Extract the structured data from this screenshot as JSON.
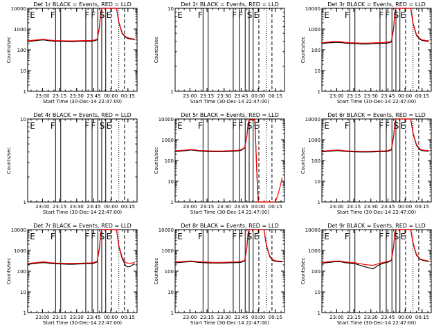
{
  "colors": {
    "events": "#000000",
    "lld": "#ff0000",
    "axis": "#000000",
    "background": "#ffffff"
  },
  "x_axis_label": "Start Time (30-Dec-14 22:47:00)",
  "y_axis_label": "Counts/sec",
  "chart_data": [
    {
      "type": "line",
      "title": "Det 1r BLACK = Events, RED = LLD",
      "x_ticks": [
        "23:00",
        "23:15",
        "23:30",
        "23:45",
        "00:00",
        "00:15"
      ],
      "y_ticks": [
        "1",
        "10",
        "100",
        "1000",
        "10000"
      ],
      "ylim": [
        1,
        10000
      ],
      "yscale": "log",
      "markers": [
        "E",
        "F",
        "F",
        "F",
        "S",
        "E"
      ],
      "x_minutes": [
        0,
        5,
        10,
        14,
        18,
        20,
        25,
        30,
        35,
        40,
        45,
        50,
        55,
        58,
        61,
        63,
        64,
        65,
        66,
        67,
        68,
        70,
        72,
        73,
        74,
        76,
        78,
        80,
        83,
        86,
        88,
        90,
        92,
        94
      ],
      "series": [
        {
          "name": "Events",
          "values": [
            250,
            270,
            290,
            300,
            280,
            270,
            260,
            255,
            250,
            250,
            255,
            260,
            260,
            270,
            300,
            1200,
            6000,
            10000,
            10000,
            10000,
            10000,
            10000,
            10000,
            10000,
            10000,
            10000,
            10000,
            2000,
            600,
            400,
            350,
            330,
            320,
            310
          ]
        },
        {
          "name": "LLD",
          "values": [
            270,
            290,
            310,
            320,
            300,
            290,
            280,
            275,
            270,
            270,
            275,
            280,
            280,
            290,
            320,
            1300,
            6500,
            10000,
            10000,
            10000,
            10000,
            10000,
            10000,
            10000,
            10000,
            10000,
            10000,
            2200,
            650,
            430,
            380,
            360,
            340,
            330
          ]
        }
      ]
    },
    {
      "type": "line",
      "title": "Det 2r BLACK = Events, RED = LLD",
      "x_ticks": [
        "23:00",
        "23:15",
        "23:30",
        "23:45",
        "00:00",
        "00:15"
      ],
      "y_ticks": [
        "1",
        "10"
      ],
      "ylim": [
        1,
        10
      ],
      "yscale": "log",
      "markers": [
        "E",
        "F",
        "F",
        "F",
        "S",
        "E"
      ],
      "x_minutes": [],
      "series": []
    },
    {
      "type": "line",
      "title": "Det 3r BLACK = Events, RED = LLD",
      "x_ticks": [
        "23:00",
        "23:15",
        "23:30",
        "23:45",
        "00:00",
        "00:15"
      ],
      "y_ticks": [
        "1",
        "10",
        "100",
        "1000",
        "10000"
      ],
      "ylim": [
        1,
        10000
      ],
      "yscale": "log",
      "markers": [
        "E",
        "F",
        "F",
        "F",
        "S",
        "E"
      ],
      "x_minutes": [
        0,
        5,
        10,
        14,
        18,
        20,
        25,
        30,
        35,
        40,
        45,
        50,
        55,
        58,
        61,
        63,
        64,
        65,
        66,
        67,
        68,
        70,
        72,
        73,
        74,
        76,
        78,
        80,
        83,
        86,
        88,
        90,
        92,
        94
      ],
      "series": [
        {
          "name": "Events",
          "values": [
            200,
            215,
            225,
            230,
            220,
            210,
            200,
            195,
            190,
            190,
            195,
            200,
            205,
            215,
            240,
            1100,
            5500,
            10000,
            10000,
            10000,
            10000,
            10000,
            10000,
            10000,
            10000,
            10000,
            10000,
            1800,
            500,
            320,
            280,
            270,
            260,
            255
          ]
        },
        {
          "name": "LLD",
          "values": [
            220,
            235,
            245,
            250,
            240,
            230,
            220,
            215,
            210,
            210,
            215,
            220,
            225,
            235,
            260,
            1200,
            6000,
            10000,
            10000,
            10000,
            10000,
            10000,
            10000,
            10000,
            10000,
            10000,
            10000,
            2000,
            550,
            350,
            300,
            290,
            280,
            275
          ]
        }
      ]
    },
    {
      "type": "line",
      "title": "Det 4r BLACK = Events, RED = LLD",
      "x_ticks": [
        "23:00",
        "23:15",
        "23:30",
        "23:45",
        "00:00",
        "00:15"
      ],
      "y_ticks": [
        "1",
        "10"
      ],
      "ylim": [
        1,
        10
      ],
      "yscale": "log",
      "markers": [
        "E",
        "F",
        "F",
        "F",
        "S",
        "E"
      ],
      "x_minutes": [],
      "series": []
    },
    {
      "type": "line",
      "title": "Det 5r BLACK = Events, RED = LLD",
      "x_ticks": [
        "23:00",
        "23:15",
        "23:30",
        "23:45",
        "00:00",
        "00:15"
      ],
      "y_ticks": [
        "1",
        "10",
        "100",
        "1000",
        "10000"
      ],
      "ylim": [
        1,
        10000
      ],
      "yscale": "log",
      "markers": [
        "E",
        "F",
        "F",
        "F",
        "S",
        "E"
      ],
      "x_minutes": [
        0,
        5,
        10,
        14,
        18,
        20,
        25,
        30,
        35,
        40,
        45,
        50,
        55,
        58,
        61,
        63,
        64,
        65,
        66,
        67,
        68,
        70,
        72,
        73,
        74,
        76,
        78,
        80,
        83,
        86,
        88,
        90,
        92,
        94
      ],
      "series": [
        {
          "name": "Events",
          "values": [
            270,
            285,
            300,
            320,
            300,
            290,
            280,
            270,
            265,
            265,
            270,
            280,
            290,
            310,
            400,
            1500,
            5000,
            9000,
            9000,
            9000,
            9000,
            9000,
            10,
            1,
            1,
            1,
            1,
            1,
            1,
            1,
            1,
            1,
            1,
            1
          ]
        },
        {
          "name": "LLD",
          "values": [
            290,
            305,
            320,
            340,
            320,
            310,
            300,
            290,
            285,
            285,
            290,
            300,
            310,
            330,
            420,
            1600,
            5500,
            9500,
            9500,
            9500,
            9500,
            9500,
            12,
            1,
            1,
            1,
            1,
            1,
            1,
            1,
            1,
            2,
            5,
            15
          ]
        }
      ]
    },
    {
      "type": "line",
      "title": "Det 6r BLACK = Events, RED = LLD",
      "x_ticks": [
        "23:00",
        "23:15",
        "23:30",
        "23:45",
        "00:00",
        "00:15"
      ],
      "y_ticks": [
        "1",
        "10",
        "100",
        "1000",
        "10000"
      ],
      "ylim": [
        1,
        10000
      ],
      "yscale": "log",
      "markers": [
        "E",
        "F",
        "F",
        "F",
        "S",
        "E"
      ],
      "x_minutes": [
        0,
        5,
        10,
        14,
        18,
        20,
        25,
        30,
        35,
        40,
        45,
        50,
        55,
        58,
        61,
        63,
        64,
        65,
        66,
        67,
        68,
        70,
        72,
        73,
        74,
        76,
        78,
        80,
        83,
        86,
        88,
        90,
        92,
        94
      ],
      "series": [
        {
          "name": "Events",
          "values": [
            260,
            275,
            290,
            300,
            285,
            275,
            265,
            260,
            255,
            255,
            260,
            265,
            270,
            280,
            320,
            1400,
            6000,
            10000,
            10000,
            10000,
            10000,
            10000,
            10000,
            10000,
            10000,
            10000,
            10000,
            2000,
            550,
            330,
            300,
            290,
            285,
            280
          ]
        },
        {
          "name": "LLD",
          "values": [
            280,
            295,
            310,
            320,
            305,
            295,
            285,
            280,
            275,
            275,
            280,
            285,
            290,
            300,
            340,
            1500,
            6500,
            10000,
            10000,
            10000,
            10000,
            10000,
            10000,
            10000,
            10000,
            10000,
            10000,
            2200,
            600,
            360,
            320,
            310,
            305,
            300
          ]
        }
      ]
    },
    {
      "type": "line",
      "title": "Det 7r BLACK = Events, RED = LLD",
      "x_ticks": [
        "23:00",
        "23:15",
        "23:30",
        "23:45",
        "00:00",
        "00:15"
      ],
      "y_ticks": [
        "1",
        "10",
        "100",
        "1000",
        "10000"
      ],
      "ylim": [
        1,
        10000
      ],
      "yscale": "log",
      "markers": [
        "E",
        "F",
        "F",
        "F",
        "S",
        "E"
      ],
      "x_minutes": [
        0,
        5,
        10,
        14,
        18,
        20,
        25,
        30,
        35,
        40,
        45,
        50,
        55,
        58,
        61,
        63,
        64,
        65,
        66,
        67,
        68,
        70,
        72,
        73,
        74,
        76,
        78,
        80,
        83,
        86,
        88,
        90,
        92,
        94
      ],
      "series": [
        {
          "name": "Events",
          "values": [
            210,
            230,
            250,
            260,
            245,
            235,
            225,
            220,
            215,
            215,
            220,
            225,
            230,
            240,
            280,
            1300,
            6000,
            10000,
            10000,
            10000,
            10000,
            10000,
            10000,
            10000,
            10000,
            10000,
            10000,
            1500,
            400,
            180,
            160,
            170,
            200,
            220
          ]
        },
        {
          "name": "LLD",
          "values": [
            230,
            250,
            270,
            280,
            265,
            255,
            245,
            240,
            235,
            235,
            240,
            245,
            250,
            260,
            300,
            1400,
            6500,
            10000,
            10000,
            10000,
            10000,
            10000,
            10000,
            10000,
            10000,
            10000,
            10000,
            1700,
            450,
            260,
            240,
            240,
            250,
            260
          ]
        }
      ]
    },
    {
      "type": "line",
      "title": "Det 8r BLACK = Events, RED = LLD",
      "x_ticks": [
        "23:00",
        "23:15",
        "23:30",
        "23:45",
        "00:00",
        "00:15"
      ],
      "y_ticks": [
        "1",
        "10",
        "100",
        "1000",
        "10000"
      ],
      "ylim": [
        1,
        10000
      ],
      "yscale": "log",
      "markers": [
        "E",
        "F",
        "F",
        "F",
        "S",
        "E"
      ],
      "x_minutes": [
        0,
        5,
        10,
        14,
        18,
        20,
        25,
        30,
        35,
        40,
        45,
        50,
        55,
        58,
        61,
        63,
        64,
        65,
        66,
        67,
        68,
        70,
        72,
        73,
        74,
        76,
        78,
        80,
        83,
        86,
        88,
        90,
        92,
        94
      ],
      "series": [
        {
          "name": "Events",
          "values": [
            250,
            265,
            280,
            290,
            275,
            265,
            255,
            250,
            245,
            245,
            250,
            255,
            260,
            270,
            310,
            1400,
            6000,
            10000,
            10000,
            10000,
            10000,
            10000,
            10000,
            10000,
            10000,
            10000,
            10000,
            1800,
            500,
            320,
            300,
            290,
            285,
            280
          ]
        },
        {
          "name": "LLD",
          "values": [
            270,
            285,
            300,
            310,
            295,
            285,
            275,
            270,
            265,
            265,
            270,
            275,
            280,
            290,
            330,
            1500,
            6500,
            10000,
            10000,
            10000,
            10000,
            10000,
            10000,
            10000,
            10000,
            10000,
            10000,
            2000,
            550,
            350,
            320,
            310,
            305,
            300
          ]
        }
      ]
    },
    {
      "type": "line",
      "title": "Det 9r BLACK = Events, RED = LLD",
      "x_ticks": [
        "23:00",
        "23:15",
        "23:30",
        "23:45",
        "00:00",
        "00:15"
      ],
      "y_ticks": [
        "1",
        "10",
        "100",
        "1000",
        "10000"
      ],
      "ylim": [
        1,
        10000
      ],
      "yscale": "log",
      "markers": [
        "E",
        "F",
        "F",
        "F",
        "S",
        "E"
      ],
      "x_minutes": [
        0,
        5,
        10,
        14,
        18,
        20,
        25,
        30,
        35,
        40,
        45,
        50,
        55,
        58,
        61,
        63,
        64,
        65,
        66,
        67,
        68,
        70,
        72,
        73,
        74,
        76,
        78,
        80,
        83,
        86,
        88,
        90,
        92,
        94
      ],
      "series": [
        {
          "name": "Events",
          "values": [
            240,
            260,
            280,
            290,
            275,
            260,
            240,
            220,
            180,
            150,
            130,
            200,
            250,
            270,
            320,
            1500,
            6500,
            10000,
            10000,
            10000,
            10000,
            10000,
            10000,
            10000,
            10000,
            10000,
            10000,
            2200,
            600,
            380,
            340,
            320,
            300,
            290
          ]
        },
        {
          "name": "LLD",
          "values": [
            260,
            280,
            300,
            310,
            295,
            280,
            265,
            250,
            220,
            200,
            190,
            230,
            270,
            290,
            340,
            1600,
            7000,
            10000,
            10000,
            10000,
            10000,
            10000,
            10000,
            10000,
            10000,
            10000,
            10000,
            2400,
            650,
            400,
            360,
            340,
            320,
            310
          ]
        }
      ]
    }
  ]
}
